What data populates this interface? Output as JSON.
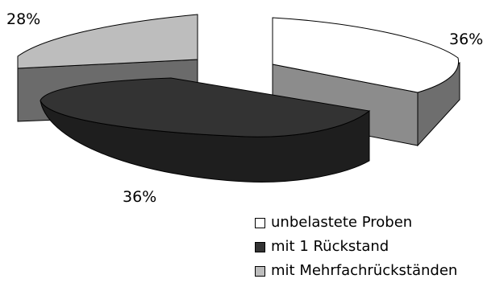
{
  "chart_data": {
    "type": "pie",
    "style": "3d-exploded",
    "slices": [
      {
        "label": "unbelastete Proben",
        "value": 36,
        "display": "36%",
        "color_top": "#ffffff",
        "color_side": "#8c8c8c"
      },
      {
        "label": "mit 1 Rückstand",
        "value": 36,
        "display": "36%",
        "color_top": "#333333",
        "color_side": "#1e1e1e"
      },
      {
        "label": "mit Mehrfachrückständen",
        "value": 28,
        "display": "28%",
        "color_top": "#bdbdbd",
        "color_side": "#6b6b6b"
      }
    ],
    "legend_position": "bottom-right"
  }
}
